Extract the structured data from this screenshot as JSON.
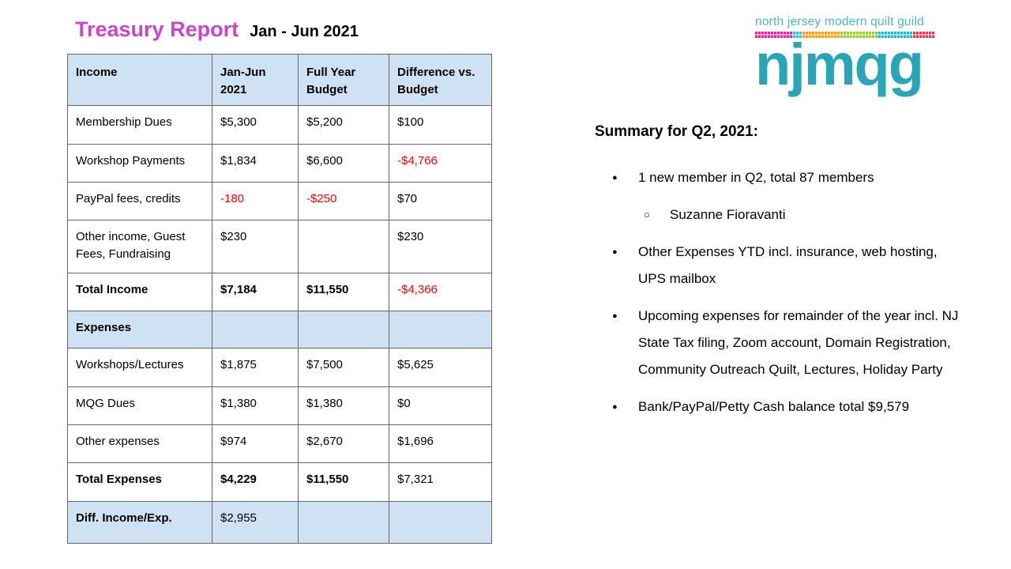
{
  "title": {
    "main": "Treasury Report",
    "period": "Jan - Jun 2021",
    "main_color": "#cc44cc"
  },
  "logo": {
    "tagline": "north jersey modern quilt guild",
    "wordmark": "njmqg",
    "tagline_color": "#4db6c2",
    "wordmark_color": "#29a5b8",
    "strip_segments": [
      {
        "color": "#ec268f",
        "pct": 20.7
      },
      {
        "color": "#3bbfd0",
        "pct": 5.3
      },
      {
        "color": "#f79c21",
        "pct": 21.1
      },
      {
        "color": "#9acb3c",
        "pct": 20.7
      },
      {
        "color": "#2fb3cd",
        "pct": 20.3
      },
      {
        "color": "#e5394f",
        "pct": 11.9
      }
    ]
  },
  "table": {
    "header_bg": "#cfe2f3",
    "negative_color": "#ff0000",
    "headers": [
      "Income",
      "Jan-Jun 2021",
      "Full Year Budget",
      "Difference vs. Budget"
    ],
    "rows": [
      {
        "label": "Membership Dues",
        "cells": [
          "$5,300",
          "$5,200",
          "$100"
        ]
      },
      {
        "label": "Workshop Payments",
        "cells": [
          "$1,834",
          "$6,600",
          "-$4,766"
        ],
        "red": [
          false,
          false,
          true
        ]
      },
      {
        "label": "PayPal fees, credits",
        "cells": [
          "-180",
          "-$250",
          "$70"
        ],
        "red": [
          true,
          true,
          false
        ]
      },
      {
        "label": "Other income, Guest Fees, Fundraising",
        "cells": [
          "$230",
          "",
          "$230"
        ]
      },
      {
        "label": "Total Income",
        "bold_label": true,
        "cells": [
          "$7,184",
          "$11,550",
          "-$4,366"
        ],
        "bold": [
          true,
          true,
          false
        ],
        "red": [
          false,
          false,
          true
        ]
      },
      {
        "label": "Expenses",
        "type": "section",
        "bold_label": true,
        "cells": [
          "",
          "",
          ""
        ]
      },
      {
        "label": "Workshops/Lectures",
        "cells": [
          "$1,875",
          "$7,500",
          "$5,625"
        ]
      },
      {
        "label": "MQG Dues",
        "cells": [
          "$1,380",
          "$1,380",
          "$0"
        ]
      },
      {
        "label": "Other expenses",
        "cells": [
          "$974",
          "$2,670",
          "$1,696"
        ]
      },
      {
        "label": "Total Expenses",
        "bold_label": true,
        "cells": [
          "$4,229",
          "$11,550",
          "$7,321"
        ],
        "bold": [
          true,
          true,
          false
        ]
      },
      {
        "label": "Diff. Income/Exp.",
        "type": "section",
        "bold_label": true,
        "cells": [
          "$2,955",
          "",
          ""
        ]
      }
    ]
  },
  "summary": {
    "heading": "Summary for Q2, 2021:",
    "items": [
      {
        "level": 1,
        "text": "1 new member in Q2, total 87 members"
      },
      {
        "level": 2,
        "text": "Suzanne Fioravanti"
      },
      {
        "level": 1,
        "text": "Other Expenses YTD incl. insurance, web hosting, UPS mailbox"
      },
      {
        "level": 1,
        "text": "Upcoming expenses for remainder of the year incl. NJ State Tax filing, Zoom account, Domain Registration, Community Outreach Quilt, Lectures, Holiday Party"
      },
      {
        "level": 1,
        "text": "Bank/PayPal/Petty Cash balance total $9,579"
      }
    ]
  }
}
